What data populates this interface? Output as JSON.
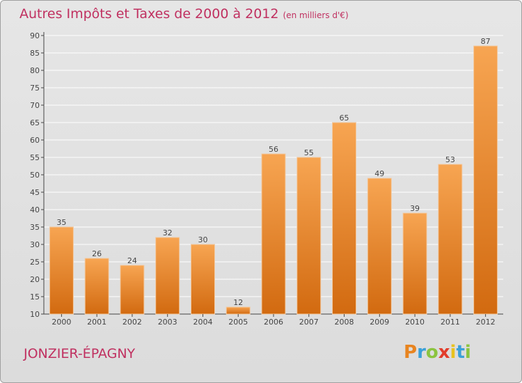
{
  "header": {
    "title": "Autres Impôts et Taxes de 2000 à 2012",
    "unit": "(en milliers d'€)"
  },
  "footer": {
    "commune": "JONZIER-ÉPAGNY",
    "logo_letters": [
      "P",
      "r",
      "o",
      "x",
      "i",
      "t",
      "i"
    ],
    "logo_colors": [
      "#e8841f",
      "#3aa0d8",
      "#8bc43f",
      "#e23c2a",
      "#e8c21f",
      "#3aa0d8",
      "#8bc43f"
    ]
  },
  "colors": {
    "bar_light": "#f7a552",
    "bar_dark": "#d26a10",
    "title": "#c03060",
    "axis": "#444444"
  },
  "chart_data": {
    "type": "bar",
    "title": "Autres Impôts et Taxes de 2000 à 2012",
    "xlabel": "",
    "ylabel": "",
    "categories": [
      "2000",
      "2001",
      "2002",
      "2003",
      "2004",
      "2005",
      "2006",
      "2007",
      "2008",
      "2009",
      "2010",
      "2011",
      "2012"
    ],
    "values": [
      35,
      26,
      24,
      32,
      30,
      12,
      56,
      55,
      65,
      49,
      39,
      53,
      87
    ],
    "ylim": [
      10,
      90
    ],
    "yticks": [
      10,
      15,
      20,
      25,
      30,
      35,
      40,
      45,
      50,
      55,
      60,
      65,
      70,
      75,
      80,
      85,
      90
    ],
    "grid": true,
    "legend": "none"
  }
}
